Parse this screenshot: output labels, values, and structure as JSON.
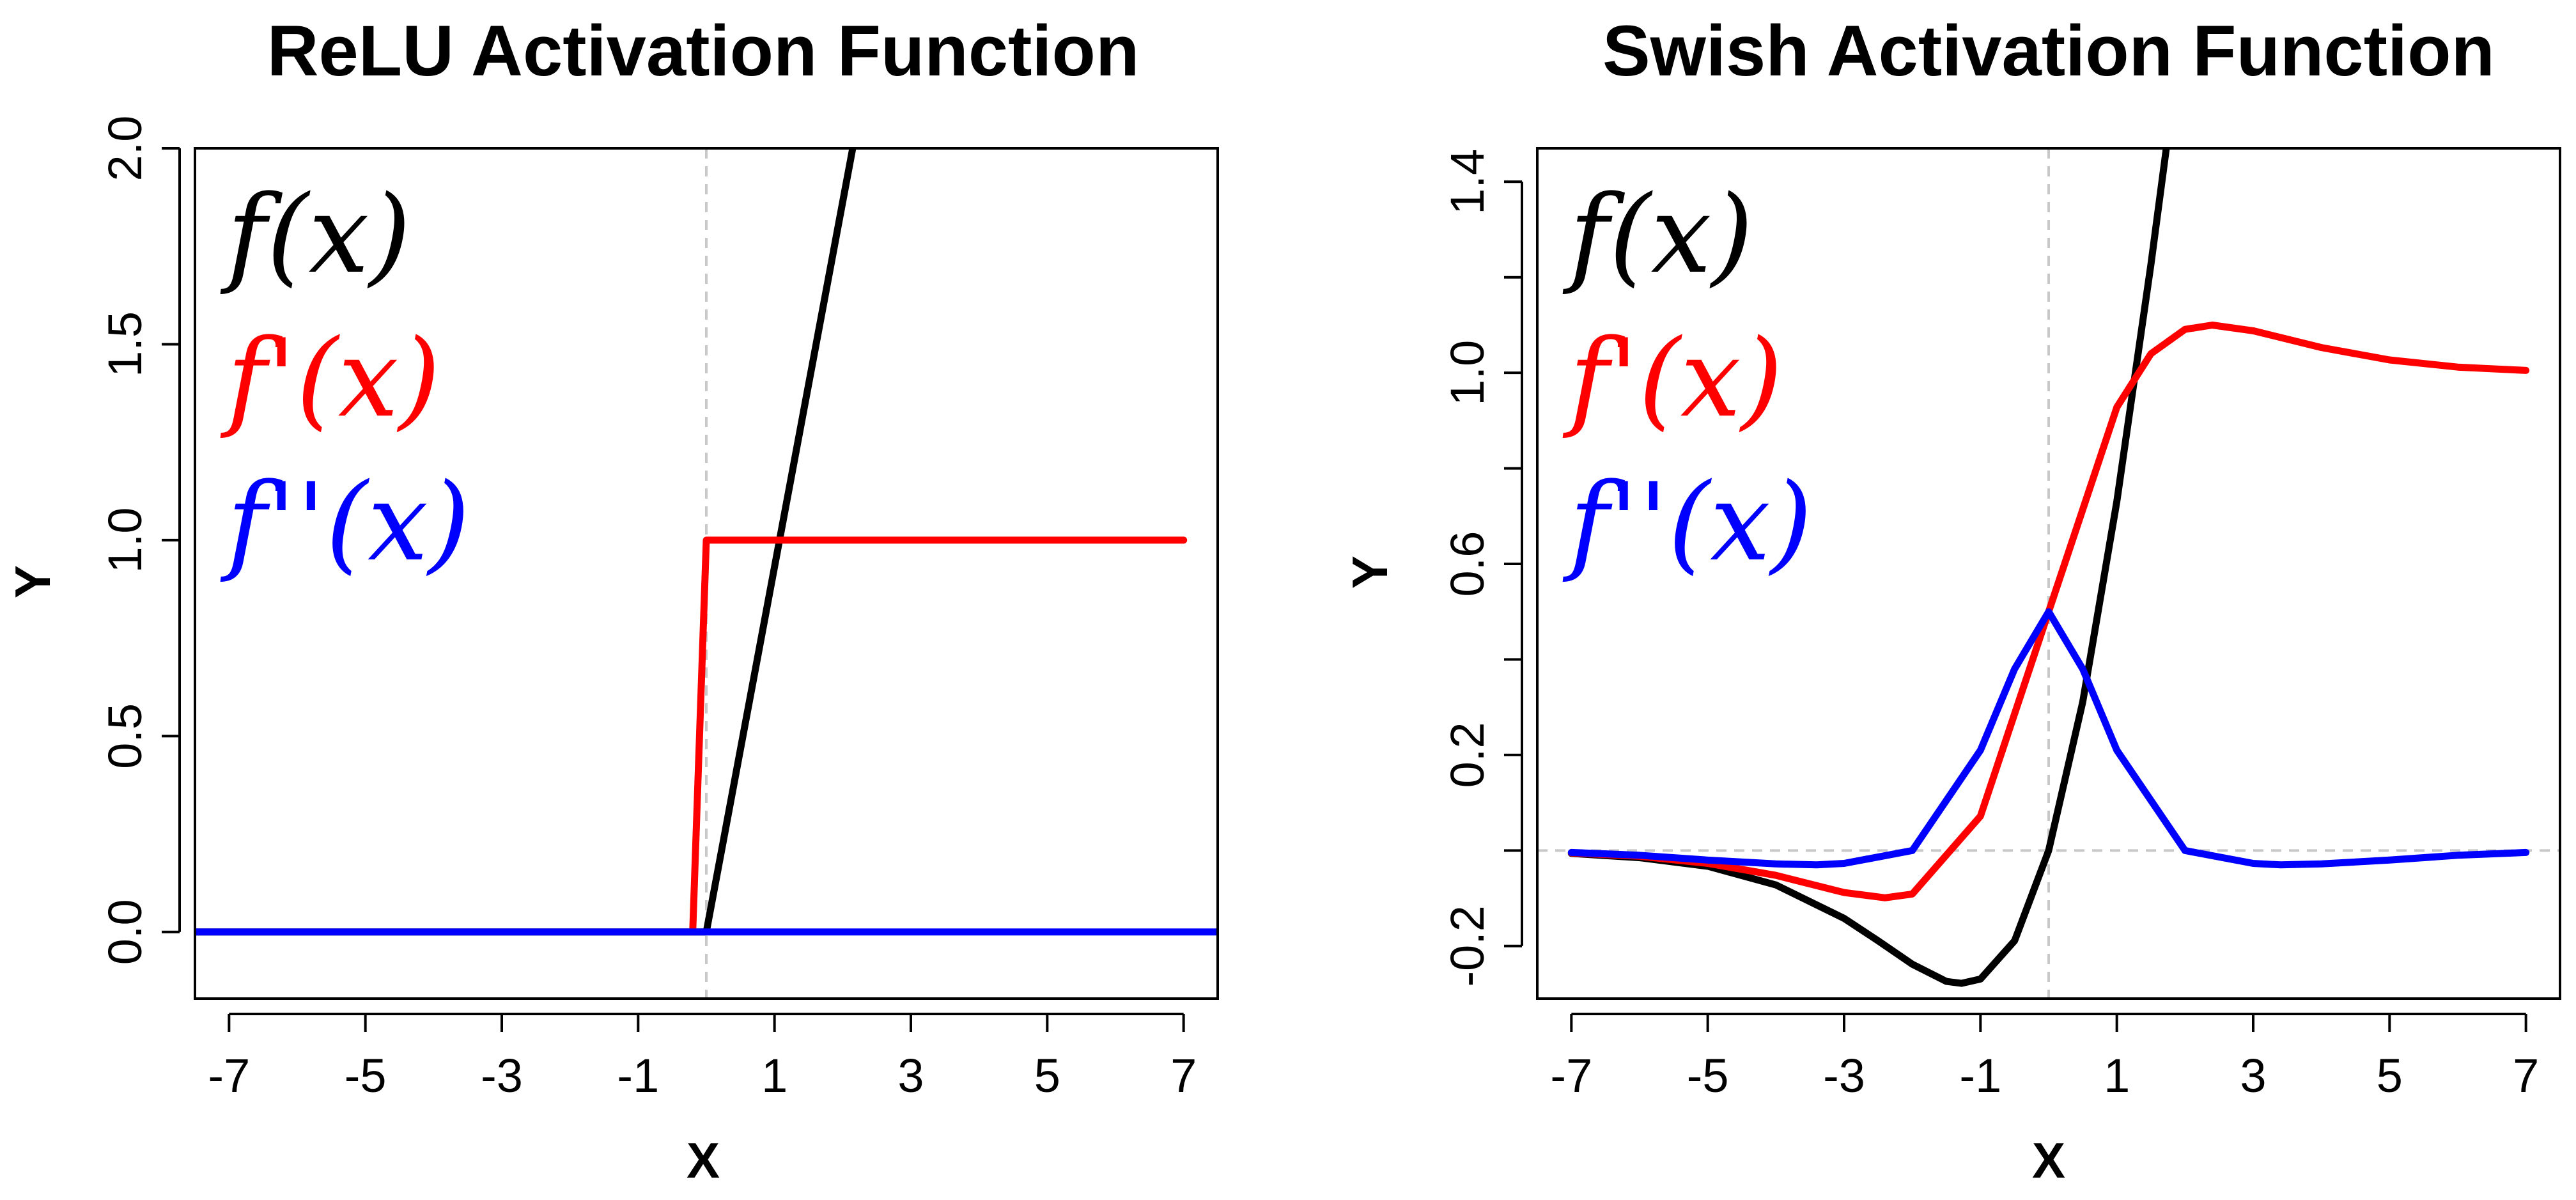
{
  "chart_data": [
    {
      "type": "line",
      "title": "ReLU Activation Function",
      "xlabel": "X",
      "ylabel": "Y",
      "xlim": [
        -7.5,
        7.5
      ],
      "ylim": [
        -0.17,
        2.0
      ],
      "xticks": [
        -7,
        -5,
        -3,
        -1,
        1,
        3,
        5,
        7
      ],
      "xtick_labels": [
        "-7",
        "-5",
        "-3",
        "-1",
        "1",
        "3",
        "5",
        "7"
      ],
      "yticks": [
        0.0,
        0.5,
        1.0,
        1.5,
        2.0
      ],
      "ytick_labels": [
        "0.0",
        "0.5",
        "1.0",
        "1.5",
        "2.0"
      ],
      "ref_lines": {
        "x": 0,
        "y": null
      },
      "grid": false,
      "legend_placement": "top-left",
      "series": [
        {
          "name": "f(x)",
          "color": "#000000",
          "x": [
            -7.5,
            0,
            2.2
          ],
          "y": [
            0,
            0,
            2.05
          ]
        },
        {
          "name": "f'(x)",
          "color": "#ff0000",
          "x": [
            -0.2,
            -0.2,
            0,
            7
          ],
          "y": [
            0,
            0,
            1,
            1
          ]
        },
        {
          "name": "f''(x)",
          "color": "#0000ff",
          "x": [
            -7.5,
            7.5
          ],
          "y": [
            0,
            0
          ]
        }
      ]
    },
    {
      "type": "line",
      "title": "Swish Activation Function",
      "xlabel": "X",
      "ylabel": "Y",
      "xlim": [
        -7.5,
        7.5
      ],
      "ylim": [
        -0.31,
        1.47
      ],
      "xticks": [
        -7,
        -5,
        -3,
        -1,
        1,
        3,
        5,
        7
      ],
      "xtick_labels": [
        "-7",
        "-5",
        "-3",
        "-1",
        "1",
        "3",
        "5",
        "7"
      ],
      "yticks": [
        -0.2,
        0.2,
        0.6,
        1.0,
        1.4
      ],
      "ytick_labels": [
        "-0.2",
        "0.2",
        "0.6",
        "1.0",
        "1.4"
      ],
      "yticks_minor": [
        0.0,
        0.4,
        0.8,
        1.2
      ],
      "ref_lines": {
        "x": 0,
        "y": 0
      },
      "grid": false,
      "legend_placement": "top-left",
      "series": [
        {
          "name": "f(x)",
          "color": "#000000",
          "x": [
            -7,
            -6,
            -5,
            -4,
            -3,
            -2.5,
            -2,
            -1.5,
            -1.28,
            -1,
            -0.5,
            0,
            0.5,
            1,
            1.5,
            1.8
          ],
          "y": [
            -0.006,
            -0.015,
            -0.033,
            -0.072,
            -0.142,
            -0.189,
            -0.238,
            -0.274,
            -0.278,
            -0.269,
            -0.189,
            0,
            0.311,
            0.731,
            1.227,
            1.55
          ]
        },
        {
          "name": "f'(x)",
          "color": "#ff0000",
          "x": [
            -7,
            -6,
            -5,
            -4,
            -3,
            -2.4,
            -2,
            -1,
            0,
            1,
            1.5,
            2,
            2.4,
            3,
            4,
            5,
            6,
            7
          ],
          "y": [
            -0.005,
            -0.012,
            -0.027,
            -0.052,
            -0.088,
            -0.099,
            -0.091,
            0.072,
            0.5,
            0.928,
            1.04,
            1.091,
            1.1,
            1.088,
            1.053,
            1.027,
            1.012,
            1.005
          ]
        },
        {
          "name": "f''(x)",
          "color": "#0000ff",
          "x": [
            -7,
            -6,
            -5,
            -4,
            -3.4,
            -3,
            -2,
            -1,
            -0.5,
            0,
            0.5,
            1,
            2,
            3,
            3.4,
            4,
            5,
            6,
            7
          ],
          "y": [
            -0.004,
            -0.01,
            -0.02,
            -0.028,
            -0.03,
            -0.027,
            0.0,
            0.21,
            0.38,
            0.5,
            0.38,
            0.21,
            0.0,
            -0.027,
            -0.03,
            -0.028,
            -0.02,
            -0.01,
            -0.004
          ]
        }
      ]
    }
  ]
}
